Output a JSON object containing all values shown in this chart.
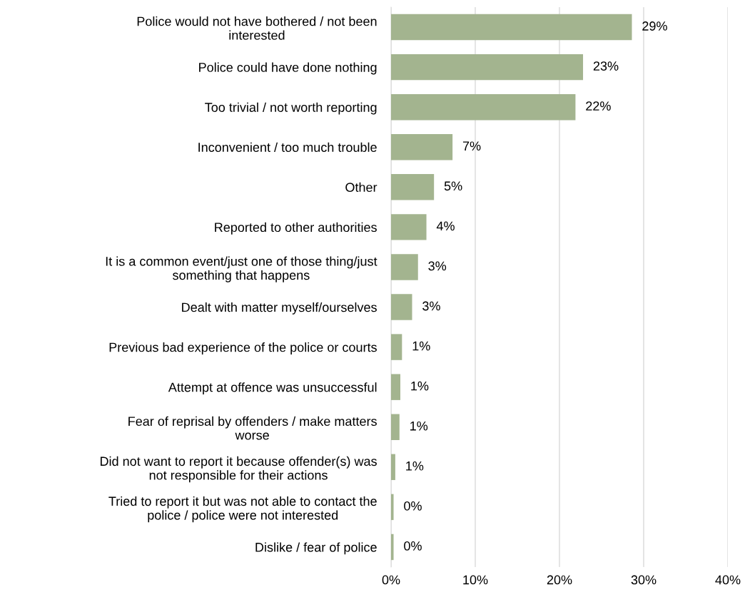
{
  "chart_data": {
    "type": "bar",
    "orientation": "horizontal",
    "categories": [
      "Police would not have bothered / not been\ninterested",
      "Police could have done nothing",
      "Too trivial / not worth reporting",
      "Inconvenient / too much trouble",
      "Other",
      "Reported to other authorities",
      "It is a common event/just one of those thing/just\nsomething that happens",
      "Dealt with matter myself/ourselves",
      "Previous bad experience of the police or courts",
      "Attempt at offence was unsuccessful",
      "Fear of reprisal by offenders / make matters\nworse",
      "Did not want to report it because offender(s) was\nnot responsible for their actions",
      "Tried to report it but was not able to contact the\npolice / police were not interested",
      "Dislike / fear of police"
    ],
    "values": [
      28.6,
      22.8,
      21.9,
      7.3,
      5.1,
      4.2,
      3.2,
      2.5,
      1.3,
      1.1,
      1.0,
      0.5,
      0.3,
      0.3
    ],
    "value_labels": [
      "29%",
      "23%",
      "22%",
      "7%",
      "5%",
      "4%",
      "3%",
      "3%",
      "1%",
      "1%",
      "1%",
      "1%",
      "0%",
      "0%"
    ],
    "color": "#a3b48f",
    "xlim": [
      0,
      40
    ],
    "xticks": [
      {
        "value": 0,
        "label": "0%"
      },
      {
        "value": 10,
        "label": "10%"
      },
      {
        "value": 20,
        "label": "20%"
      },
      {
        "value": 30,
        "label": "30%"
      },
      {
        "value": 40,
        "label": "40%"
      }
    ],
    "grid": "x"
  }
}
